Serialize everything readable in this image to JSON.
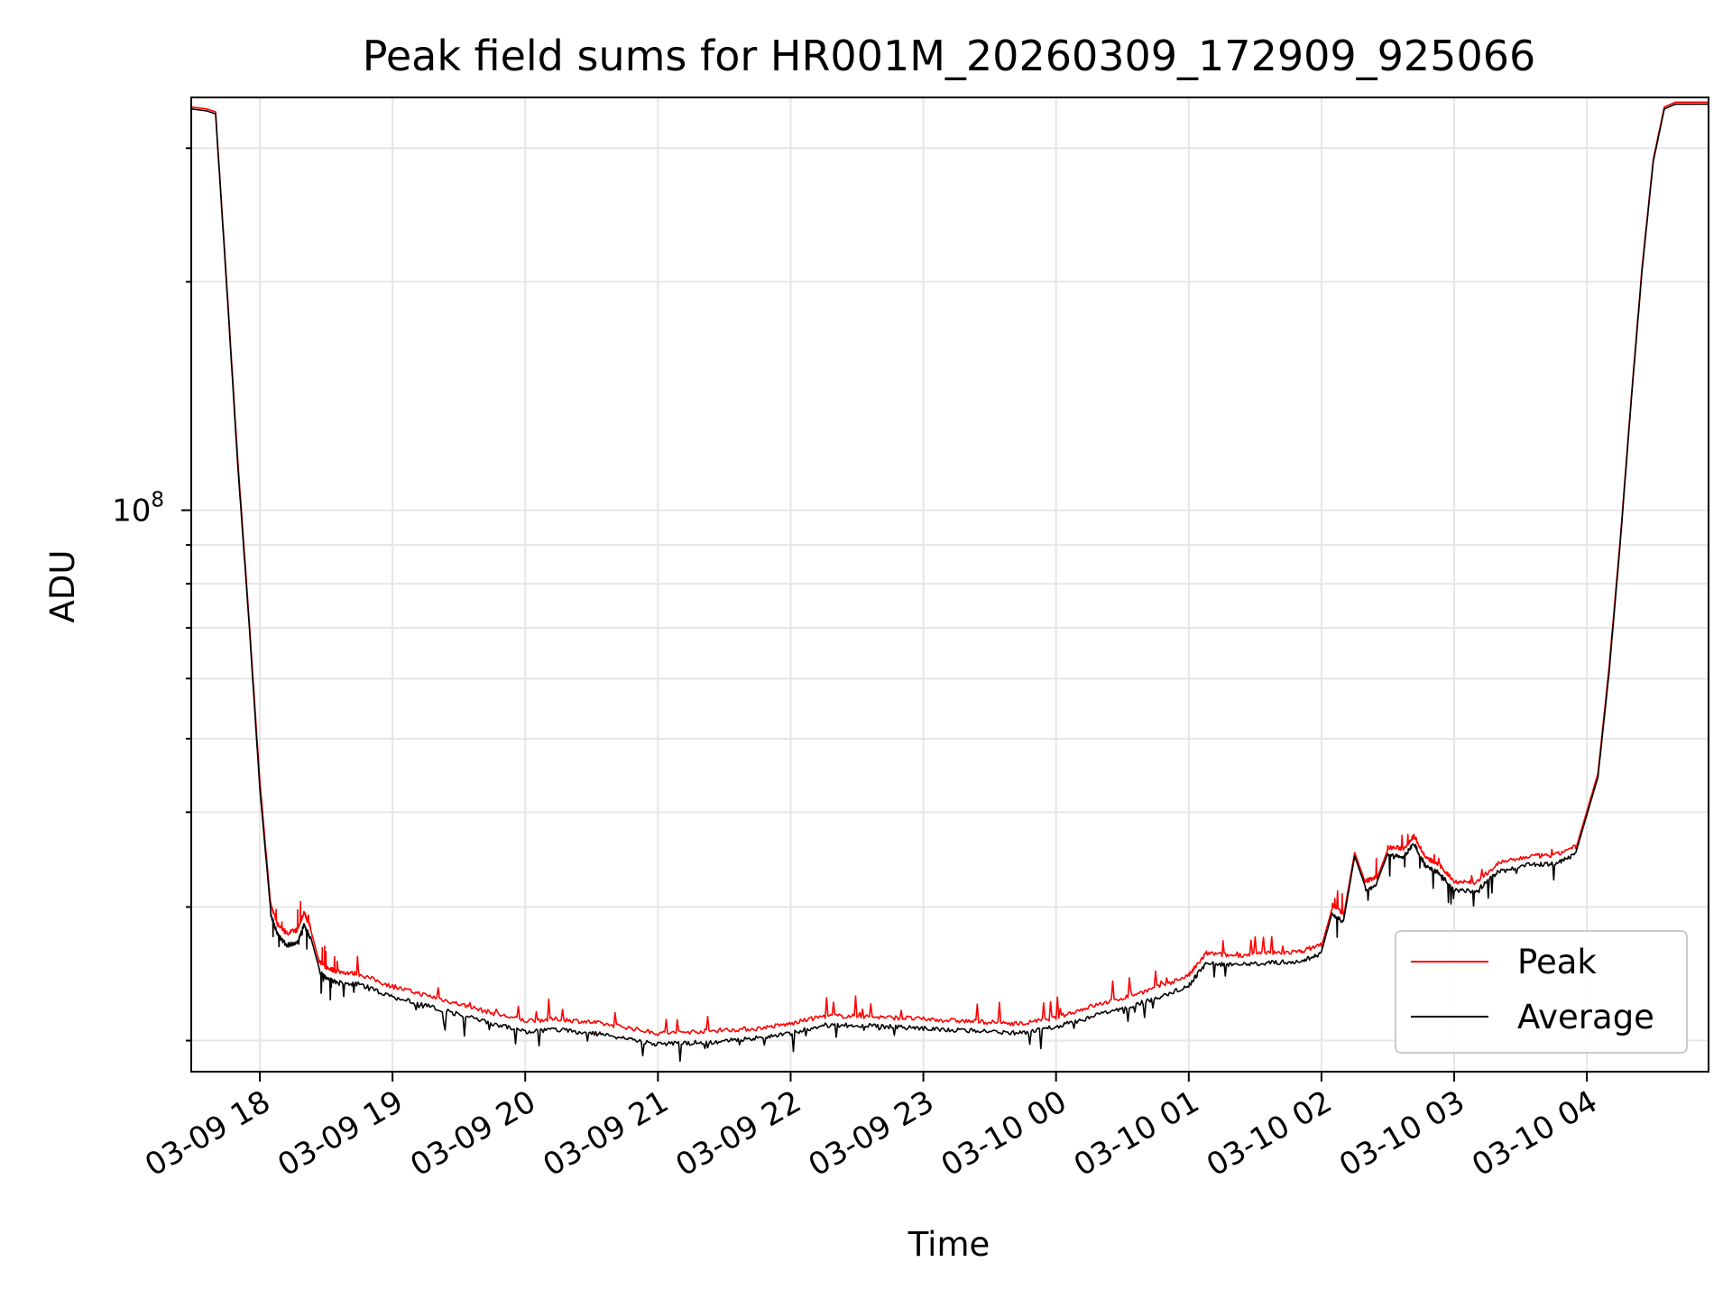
{
  "chart_data": {
    "type": "line",
    "title": "Peak field sums for HR001M_20260309_172909_925066",
    "xlabel": "Time",
    "ylabel": "ADU",
    "y_scale": "log",
    "ylim": [
      18200000,
      350000000
    ],
    "xlim": [
      "2026-03-09 17:29",
      "2026-03-10 04:55"
    ],
    "grid": true,
    "legend_position": "lower-right",
    "x_tick_labels": [
      "03-09 18",
      "03-09 19",
      "03-09 20",
      "03-09 21",
      "03-09 22",
      "03-09 23",
      "03-10 00",
      "03-10 01",
      "03-10 02",
      "03-10 03",
      "03-10 04"
    ],
    "x_tick_times": [
      "2026-03-09 18:00",
      "2026-03-09 19:00",
      "2026-03-09 20:00",
      "2026-03-09 21:00",
      "2026-03-09 22:00",
      "2026-03-09 23:00",
      "2026-03-10 00:00",
      "2026-03-10 01:00",
      "2026-03-10 02:00",
      "2026-03-10 03:00",
      "2026-03-10 04:00"
    ],
    "y_tick_labels": [
      {
        "base": "10",
        "exp": "8",
        "value": 100000000
      }
    ],
    "series": [
      {
        "name": "Peak",
        "color": "#ff0000",
        "x": [
          "2026-03-09 17:29",
          "2026-03-09 17:36",
          "2026-03-09 17:40",
          "2026-03-09 17:45",
          "2026-03-09 17:50",
          "2026-03-09 17:55",
          "2026-03-09 18:00",
          "2026-03-09 18:05",
          "2026-03-09 18:08",
          "2026-03-09 18:12",
          "2026-03-09 18:17",
          "2026-03-09 18:20",
          "2026-03-09 18:23",
          "2026-03-09 18:27",
          "2026-03-09 18:30",
          "2026-03-09 18:35",
          "2026-03-09 18:45",
          "2026-03-09 19:00",
          "2026-03-09 19:15",
          "2026-03-09 19:30",
          "2026-03-09 19:45",
          "2026-03-09 20:00",
          "2026-03-09 20:15",
          "2026-03-09 20:30",
          "2026-03-09 20:45",
          "2026-03-09 21:00",
          "2026-03-09 21:15",
          "2026-03-09 21:30",
          "2026-03-09 21:45",
          "2026-03-09 22:00",
          "2026-03-09 22:15",
          "2026-03-09 22:30",
          "2026-03-09 22:45",
          "2026-03-09 23:00",
          "2026-03-09 23:15",
          "2026-03-09 23:30",
          "2026-03-09 23:45",
          "2026-03-10 00:00",
          "2026-03-10 00:15",
          "2026-03-10 00:30",
          "2026-03-10 00:45",
          "2026-03-10 01:00",
          "2026-03-10 01:08",
          "2026-03-10 01:20",
          "2026-03-10 01:35",
          "2026-03-10 01:50",
          "2026-03-10 02:00",
          "2026-03-10 02:05",
          "2026-03-10 02:10",
          "2026-03-10 02:15",
          "2026-03-10 02:20",
          "2026-03-10 02:25",
          "2026-03-10 02:30",
          "2026-03-10 02:37",
          "2026-03-10 02:42",
          "2026-03-10 02:47",
          "2026-03-10 02:53",
          "2026-03-10 03:00",
          "2026-03-10 03:10",
          "2026-03-10 03:20",
          "2026-03-10 03:35",
          "2026-03-10 03:45",
          "2026-03-10 03:55",
          "2026-03-10 04:05",
          "2026-03-10 04:10",
          "2026-03-10 04:15",
          "2026-03-10 04:20",
          "2026-03-10 04:25",
          "2026-03-10 04:30",
          "2026-03-10 04:35",
          "2026-03-10 04:40",
          "2026-03-10 04:45",
          "2026-03-10 04:50",
          "2026-03-10 04:55"
        ],
        "y": [
          340000000,
          338000000,
          335000000,
          200000000,
          117000000,
          73000000,
          44000000,
          30000000,
          28300000,
          27500000,
          27800000,
          29300000,
          28000000,
          25300000,
          24800000,
          24500000,
          24300000,
          23400000,
          22800000,
          22200000,
          21600000,
          21100000,
          21200000,
          21000000,
          20700000,
          20300000,
          20400000,
          20500000,
          20600000,
          20900000,
          21400000,
          21400000,
          21300000,
          21200000,
          21100000,
          21000000,
          20900000,
          21300000,
          22000000,
          22600000,
          23300000,
          24200000,
          25900000,
          25700000,
          25900000,
          26000000,
          26600000,
          30000000,
          29200000,
          35400000,
          32200000,
          32700000,
          35700000,
          35600000,
          37000000,
          34600000,
          33900000,
          32200000,
          32100000,
          34000000,
          34800000,
          34800000,
          35800000,
          45000000,
          62000000,
          91000000,
          140000000,
          210000000,
          290000000,
          340000000,
          345000000,
          345000000,
          345000000,
          345000000
        ]
      },
      {
        "name": "Average",
        "color": "#000000",
        "x": [
          "2026-03-09 17:29",
          "2026-03-09 17:36",
          "2026-03-09 17:40",
          "2026-03-09 17:45",
          "2026-03-09 17:50",
          "2026-03-09 17:55",
          "2026-03-09 18:00",
          "2026-03-09 18:05",
          "2026-03-09 18:08",
          "2026-03-09 18:12",
          "2026-03-09 18:17",
          "2026-03-09 18:20",
          "2026-03-09 18:23",
          "2026-03-09 18:27",
          "2026-03-09 18:30",
          "2026-03-09 18:35",
          "2026-03-09 18:45",
          "2026-03-09 19:00",
          "2026-03-09 19:15",
          "2026-03-09 19:30",
          "2026-03-09 19:45",
          "2026-03-09 20:00",
          "2026-03-09 20:15",
          "2026-03-09 20:30",
          "2026-03-09 20:45",
          "2026-03-09 21:00",
          "2026-03-09 21:15",
          "2026-03-09 21:30",
          "2026-03-09 21:45",
          "2026-03-09 22:00",
          "2026-03-09 22:15",
          "2026-03-09 22:30",
          "2026-03-09 22:45",
          "2026-03-09 23:00",
          "2026-03-09 23:15",
          "2026-03-09 23:30",
          "2026-03-09 23:45",
          "2026-03-10 00:00",
          "2026-03-10 00:15",
          "2026-03-10 00:30",
          "2026-03-10 00:45",
          "2026-03-10 01:00",
          "2026-03-10 01:08",
          "2026-03-10 01:20",
          "2026-03-10 01:35",
          "2026-03-10 01:50",
          "2026-03-10 02:00",
          "2026-03-10 02:05",
          "2026-03-10 02:10",
          "2026-03-10 02:15",
          "2026-03-10 02:20",
          "2026-03-10 02:25",
          "2026-03-10 02:30",
          "2026-03-10 02:37",
          "2026-03-10 02:42",
          "2026-03-10 02:47",
          "2026-03-10 02:53",
          "2026-03-10 03:00",
          "2026-03-10 03:10",
          "2026-03-10 03:20",
          "2026-03-10 03:35",
          "2026-03-10 03:45",
          "2026-03-10 03:55",
          "2026-03-10 04:05",
          "2026-03-10 04:10",
          "2026-03-10 04:15",
          "2026-03-10 04:20",
          "2026-03-10 04:25",
          "2026-03-10 04:30",
          "2026-03-10 04:35",
          "2026-03-10 04:40",
          "2026-03-10 04:45",
          "2026-03-10 04:50",
          "2026-03-10 04:55"
        ],
        "y": [
          338000000,
          336000000,
          333000000,
          198000000,
          115000000,
          72000000,
          43000000,
          29500000,
          27800000,
          26900000,
          27100000,
          28600000,
          27400000,
          24800000,
          24300000,
          24000000,
          23900000,
          23000000,
          22400000,
          21800000,
          21200000,
          20700000,
          20800000,
          20600000,
          20300000,
          19900000,
          20000000,
          20100000,
          20300000,
          20600000,
          21100000,
          21100000,
          21000000,
          20900000,
          20800000,
          20700000,
          20600000,
          21000000,
          21600000,
          22200000,
          22900000,
          23800000,
          25500000,
          25300000,
          25500000,
          25600000,
          26200000,
          29600000,
          28800000,
          35000000,
          31800000,
          32300000,
          35300000,
          35200000,
          36600000,
          34200000,
          33500000,
          31800000,
          31700000,
          33600000,
          34400000,
          34400000,
          35400000,
          44500000,
          61000000,
          90000000,
          139000000,
          208000000,
          288000000,
          338000000,
          343000000,
          343000000,
          343000000,
          343000000
        ]
      }
    ]
  }
}
